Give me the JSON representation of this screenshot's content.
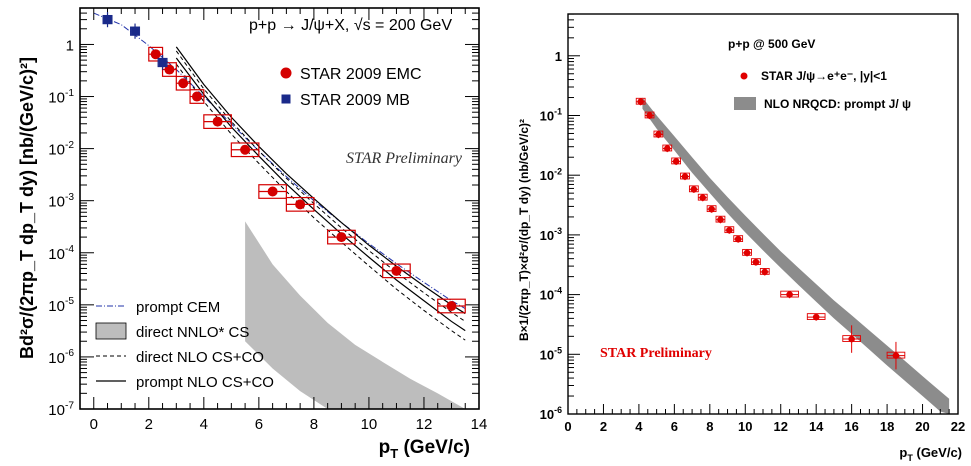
{
  "chart_data": [
    {
      "type": "scatter",
      "log_y": true,
      "xlim": [
        -0.5,
        14
      ],
      "ylim_exp": [
        -7,
        0.7
      ],
      "x_ticks": [
        "0",
        "2",
        "4",
        "6",
        "8",
        "10",
        "12",
        "14"
      ],
      "y_ticks": [
        "10^-7",
        "10^-6",
        "10^-5",
        "10^-4",
        "10^-3",
        "10^-2",
        "10^-1",
        "1"
      ],
      "xlabel": "p_T (GeV/c)",
      "ylabel": "Bd²σ/(2πp_T dp_T dy) [nb/(GeV/c)²]",
      "title": "p+p → J/ψ+X,  √s = 200 GeV",
      "watermark": "STAR Preliminary",
      "legend": {
        "placement": "bottom-left",
        "items": [
          "prompt CEM",
          "direct NNLO* CS",
          "direct NLO CS+CO",
          "prompt NLO CS+CO"
        ]
      },
      "series": [
        {
          "name": "STAR 2009 EMC",
          "color": "#d40000",
          "marker": "circle",
          "x": [
            2.25,
            2.75,
            3.25,
            3.75,
            4.5,
            5.5,
            6.5,
            7.5,
            9.0,
            11.0,
            13.0
          ],
          "y": [
            0.65,
            0.33,
            0.18,
            0.1,
            0.033,
            0.0095,
            0.0015,
            0.00085,
            0.0002,
            4.5e-05,
            9.5e-06
          ]
        },
        {
          "name": "STAR 2009 MB",
          "color": "#1a2a8a",
          "marker": "square",
          "x": [
            0.5,
            1.5,
            2.5
          ],
          "y": [
            3.0,
            1.8,
            0.45
          ]
        }
      ]
    },
    {
      "type": "scatter",
      "log_y": true,
      "xlim": [
        0,
        22
      ],
      "ylim_exp": [
        -6,
        0.7
      ],
      "x_ticks": [
        "0",
        "2",
        "4",
        "6",
        "8",
        "10",
        "12",
        "14",
        "16",
        "18",
        "20",
        "22"
      ],
      "y_ticks": [
        "10^-6",
        "10^-5",
        "10^-4",
        "10^-3",
        "10^-2",
        "10^-1",
        "1"
      ],
      "xlabel": "p_T (GeV/c)",
      "ylabel": "B×1/(2πp_T)×d²σ/(dp_T dy)   (nb/GeV/c)²",
      "title": "p+p @ 500 GeV",
      "watermark": "STAR Preliminary",
      "legend": {
        "placement": "top-right",
        "items": [
          "STAR  J/ψ→e⁺e⁻, |y|<1",
          "NLO NRQCD: prompt J/  ψ"
        ]
      },
      "series": [
        {
          "name": "STAR  J/ψ→e⁺e⁻, |y|<1",
          "color": "#e00000",
          "x": [
            4.1,
            4.6,
            5.1,
            5.6,
            6.1,
            6.6,
            7.1,
            7.6,
            8.1,
            8.6,
            9.1,
            9.6,
            10.1,
            10.6,
            11.1,
            12.5,
            14.0,
            16.0,
            18.5
          ],
          "y": [
            0.17,
            0.1,
            0.048,
            0.028,
            0.017,
            0.0095,
            0.0058,
            0.0042,
            0.0027,
            0.0018,
            0.0012,
            0.00085,
            0.0005,
            0.00035,
            0.00024,
            0.0001,
            4.2e-05,
            1.8e-05,
            9.5e-06
          ]
        }
      ]
    }
  ]
}
